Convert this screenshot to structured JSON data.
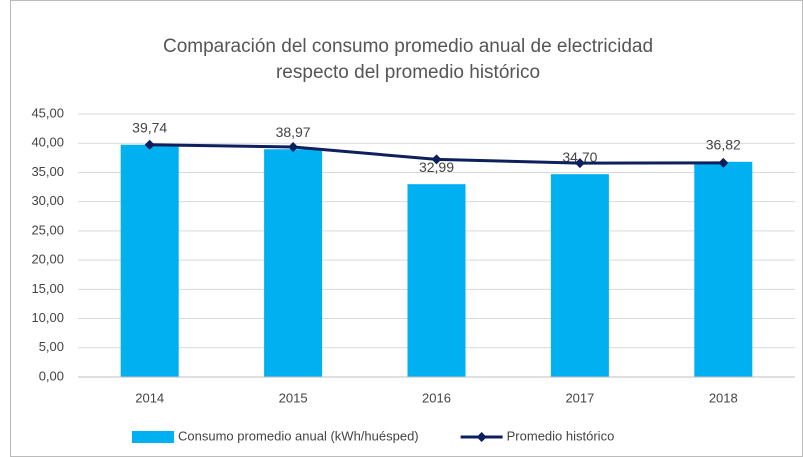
{
  "chart_data": {
    "type": "bar",
    "title": [
      "Comparación del consumo promedio anual de electricidad",
      "respecto del promedio histórico"
    ],
    "categories": [
      "2014",
      "2015",
      "2016",
      "2017",
      "2018"
    ],
    "series": [
      {
        "name": "Consumo promedio anual (kWh/huésped)",
        "type": "bar",
        "color": "#00b0f0",
        "values": [
          39.74,
          38.97,
          32.99,
          34.7,
          36.82
        ],
        "value_labels": [
          "39,74",
          "38,97",
          "32,99",
          "34,70",
          "36,82"
        ]
      },
      {
        "name": "Promedio histórico",
        "type": "line",
        "color": "#0d1f5c",
        "values": [
          39.74,
          39.36,
          37.23,
          36.6,
          36.64
        ]
      }
    ],
    "ylim": [
      0,
      45
    ],
    "yticks": [
      {
        "value": 0,
        "label": "0,00"
      },
      {
        "value": 5,
        "label": "5,00"
      },
      {
        "value": 10,
        "label": "10,00"
      },
      {
        "value": 15,
        "label": "15,00"
      },
      {
        "value": 20,
        "label": "20,00"
      },
      {
        "value": 25,
        "label": "25,00"
      },
      {
        "value": 30,
        "label": "30,00"
      },
      {
        "value": 35,
        "label": "35,00"
      },
      {
        "value": 40,
        "label": "40,00"
      },
      {
        "value": 45,
        "label": "45,00"
      }
    ],
    "grid": true,
    "legend": "bottom"
  }
}
